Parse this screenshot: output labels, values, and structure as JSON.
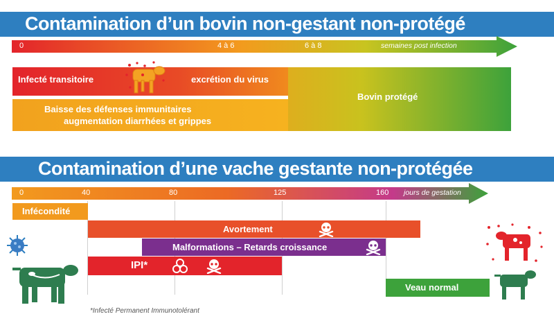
{
  "section1": {
    "title": "Contamination d’un bovin non-gestant non-protégé",
    "timeline": {
      "ticks": [
        "0",
        "4 à 6",
        "6 à 8"
      ],
      "unit": "semaines post infection"
    },
    "bars": {
      "infected": "Infecté transitoire",
      "excretion": "excrétion du virus",
      "defenses_line1": "Baisse des défenses immunitaires",
      "defenses_line2": "augmentation diarrhées et grippes",
      "protected": "Bovin protégé"
    }
  },
  "section2": {
    "title": "Contamination d’une vache gestante non-protégée",
    "timeline": {
      "ticks": [
        "0",
        "40",
        "80",
        "125",
        "160"
      ],
      "unit": "jours de gestation"
    },
    "bars": {
      "infertility": "Infécondité",
      "abortion": "Avortement",
      "malformations": "Malformations – Retards croissance",
      "ipi": "IPI*",
      "normal_calf": "Veau normal"
    },
    "footnote": "*Infecté Permanent Immunotolérant"
  },
  "colors": {
    "banner": "#2e7fc0",
    "red": "#e3242b",
    "orange": "#f29a1e",
    "dark_orange": "#e8502a",
    "purple": "#7b2f8e",
    "green": "#3da23b",
    "cow_green": "#2e7d4f"
  },
  "icons": [
    "cow-infected-icon",
    "skull-icon",
    "biohazard-icon",
    "virus-icon",
    "cow-icon",
    "calf-infected-icon",
    "calf-healthy-icon"
  ]
}
